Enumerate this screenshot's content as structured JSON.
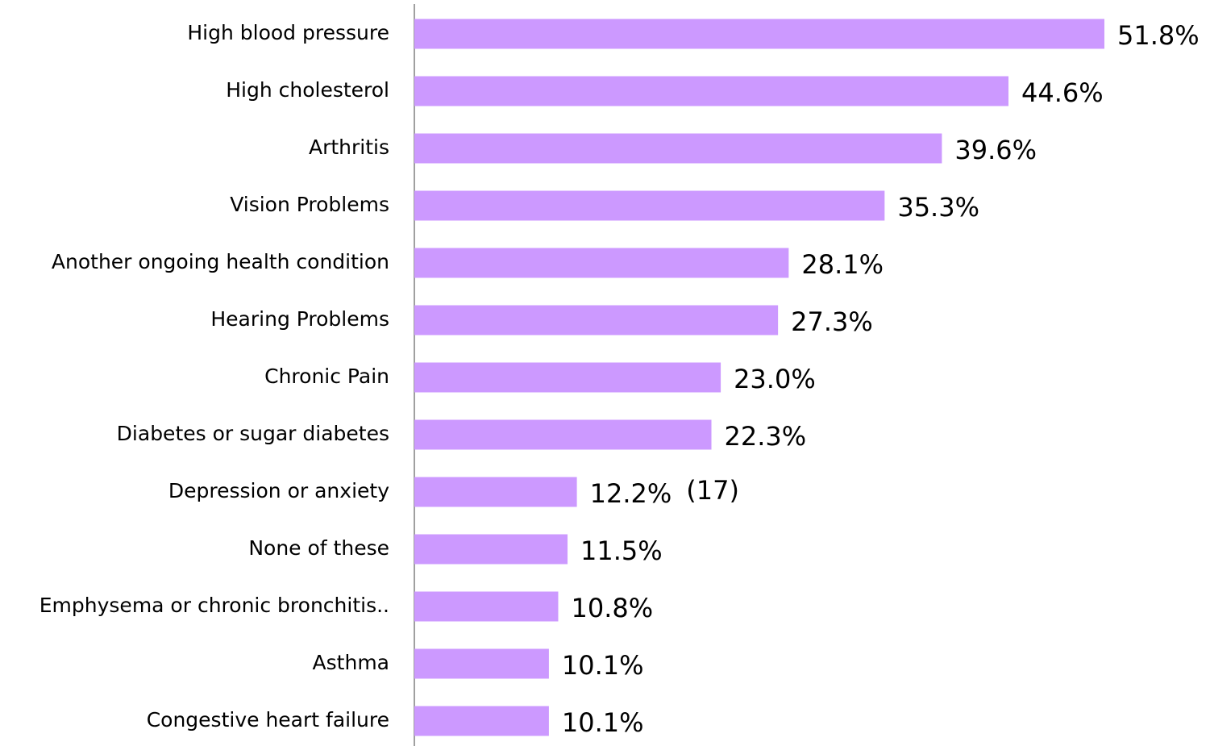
{
  "chart_data": {
    "type": "bar",
    "orientation": "horizontal",
    "categories": [
      "High blood pressure",
      "High cholesterol",
      "Arthritis",
      "Vision Problems",
      "Another ongoing health condition",
      "Hearing Problems",
      "Chronic Pain",
      "Diabetes or sugar diabetes",
      "Depression or anxiety",
      "None of these",
      "Emphysema or chronic bronchitis..",
      "Asthma",
      "Congestive heart failure"
    ],
    "values": [
      51.8,
      44.6,
      39.6,
      35.3,
      28.1,
      27.3,
      23.0,
      22.3,
      12.2,
      11.5,
      10.8,
      10.1,
      10.1
    ],
    "value_labels": [
      "51.8%",
      "44.6%",
      "39.6%",
      "35.3%",
      "28.1%",
      "27.3%",
      "23.0%",
      "22.3%",
      "12.2%",
      "11.5%",
      "10.8%",
      "10.1%",
      "10.1%"
    ],
    "annotations": [
      "(17)"
    ],
    "color": "#cc99ff"
  }
}
